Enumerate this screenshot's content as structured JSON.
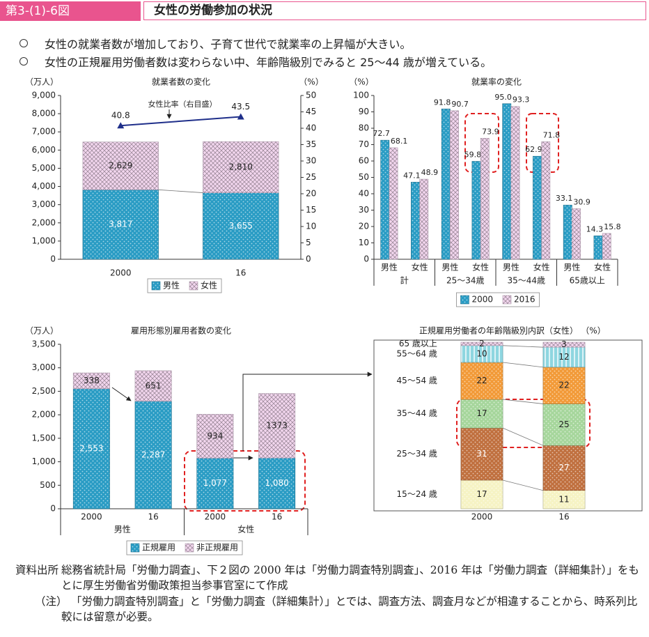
{
  "header": {
    "figure_number": "第3-(1)-6図",
    "title": "女性の労働参加の状況"
  },
  "bullets": [
    "女性の就業者数が増加しており、子育て世代で就業率の上昇幅が大きい。",
    "女性の正規雇用労働者数は変わらない中、年齢階級別でみると 25～44 歳が増えている。"
  ],
  "chart_data": [
    {
      "type": "stacked_bar",
      "title": "就業者数の変化",
      "y_unit": "（万人）",
      "y2_unit": "（%）",
      "categories": [
        "2000",
        "16"
      ],
      "series": [
        {
          "name": "男性",
          "color": "#2a9cc4",
          "pattern": "dots",
          "values": [
            3817,
            3655
          ],
          "value_labels": [
            "3,817",
            "3,655"
          ]
        },
        {
          "name": "女性",
          "color": "#f2d6ee",
          "pattern": "crosshatch",
          "values": [
            2629,
            2810
          ],
          "value_labels": [
            "2,629",
            "2,810"
          ]
        },
        {
          "name": "女性比率（右目盛）",
          "color": "#1f2f8a",
          "axis": "y2",
          "values": [
            40.8,
            43.5
          ]
        }
      ],
      "ylim": [
        0,
        9000
      ],
      "yticks": [
        0,
        {
          "value": 1000,
          "label": "1,000"
        },
        {
          "value": 2000,
          "label": "2,000"
        },
        {
          "value": 3000,
          "label": "3,000"
        },
        {
          "value": 4000,
          "label": "4,000"
        },
        {
          "value": 5000,
          "label": "5,000"
        },
        {
          "value": 6000,
          "label": "6,000"
        },
        {
          "value": 7000,
          "label": "7,000"
        },
        {
          "value": 8000,
          "label": "8,000"
        },
        {
          "value": 9000,
          "label": "9,000"
        }
      ],
      "y2lim": [
        0,
        50
      ],
      "y2ticks": [
        0,
        5,
        10,
        15,
        20,
        25,
        30,
        35,
        40,
        45,
        50
      ],
      "legend": "bottom"
    },
    {
      "type": "bar",
      "title": "就業率の変化",
      "y_unit": "（%）",
      "categories": [
        "男性",
        "女性",
        "男性",
        "女性",
        "男性",
        "女性",
        "男性",
        "女性"
      ],
      "groups": [
        "計",
        "25～34歳",
        "35～44歳",
        "65歳以上"
      ],
      "series": [
        {
          "name": "2000",
          "color": "#2a9cc4",
          "pattern": "dots",
          "values": [
            72.7,
            47.1,
            91.8,
            59.8,
            95,
            62.9,
            33.1,
            14.3
          ],
          "value_labels": [
            "72.7",
            "47.1",
            "91.8",
            "59.8",
            "95.0",
            "62.9",
            "33.1",
            "14.3"
          ]
        },
        {
          "name": "2016",
          "color": "#f2d6ee",
          "pattern": "crosshatch",
          "values": [
            68.1,
            48.9,
            90.7,
            73.9,
            93.3,
            71.8,
            30.9,
            15.8
          ],
          "value_labels": [
            "68.1",
            "48.9",
            "90.7",
            "73.9",
            "93.3",
            "71.8",
            "30.9",
            "15.8"
          ]
        }
      ],
      "ylim": [
        0,
        100
      ],
      "yticks": [
        0,
        10,
        20,
        30,
        40,
        50,
        60,
        70,
        80,
        90,
        100
      ],
      "legend": "bottom"
    },
    {
      "type": "stacked_bar",
      "title": "雇用形態別雇用者数の変化",
      "y_unit": "（万人）",
      "categories": [
        "2000",
        "16",
        "2000",
        "16"
      ],
      "groups": [
        "男性",
        "女性"
      ],
      "series": [
        {
          "name": "正規雇用",
          "color": "#2a9cc4",
          "pattern": "dots",
          "values": [
            2553,
            2287,
            1077,
            1080
          ],
          "value_labels": [
            "2,553",
            "2,287",
            "1,077",
            "1,080"
          ]
        },
        {
          "name": "非正規雇用",
          "color": "#f2d6ee",
          "pattern": "crosshatch",
          "values": [
            338,
            651,
            934,
            1373
          ]
        }
      ],
      "ylim": [
        0,
        3500
      ],
      "yticks": [
        0,
        500,
        {
          "value": 1000,
          "label": "1,000"
        },
        {
          "value": 1500,
          "label": "1,500"
        },
        {
          "value": 2000,
          "label": "2,000"
        },
        {
          "value": 2500,
          "label": "2,500"
        },
        {
          "value": 3000,
          "label": "3,000"
        },
        {
          "value": 3500,
          "label": "3,500"
        }
      ],
      "legend": "bottom"
    },
    {
      "type": "stacked_bar",
      "title": "正規雇用労働者の年齢階級別内訳（女性）",
      "unit": "（%）",
      "categories": [
        "2000",
        "16"
      ],
      "series": [
        {
          "name": "15～24 歳",
          "color": "#f6f3c4",
          "pattern": "dots",
          "values": [
            17,
            11
          ]
        },
        {
          "name": "25～34 歳",
          "color": "#c0703f",
          "pattern": "dots",
          "values": [
            31,
            27
          ]
        },
        {
          "name": "35～44 歳",
          "color": "#a6d69c",
          "pattern": "dots",
          "values": [
            17,
            25
          ]
        },
        {
          "name": "45～54 歳",
          "color": "#f29a38",
          "pattern": "dots",
          "values": [
            22,
            22
          ]
        },
        {
          "name": "55～64 歳",
          "color": "#8ed6e0",
          "pattern": "stripes",
          "values": [
            10,
            12
          ]
        },
        {
          "name": "65 歳以上",
          "color": "#f2d6ee",
          "pattern": "crosshatch",
          "values": [
            2,
            3
          ]
        }
      ]
    }
  ],
  "notes": {
    "source_label": "資料出所",
    "source": "総務省統計局「労働力調査」、下２図の 2000 年は「労働力調査特別調査」、2016 年は「労働力調査（詳細集計）」をもとに厚生労働省労働政策担当参事官室にて作成",
    "note_label": "（注）",
    "note": "「労働力調査特別調査」と「労働力調査（詳細集計）」とでは、調査方法、調査月などが相違することから、時系列比較には留意が必要。"
  }
}
